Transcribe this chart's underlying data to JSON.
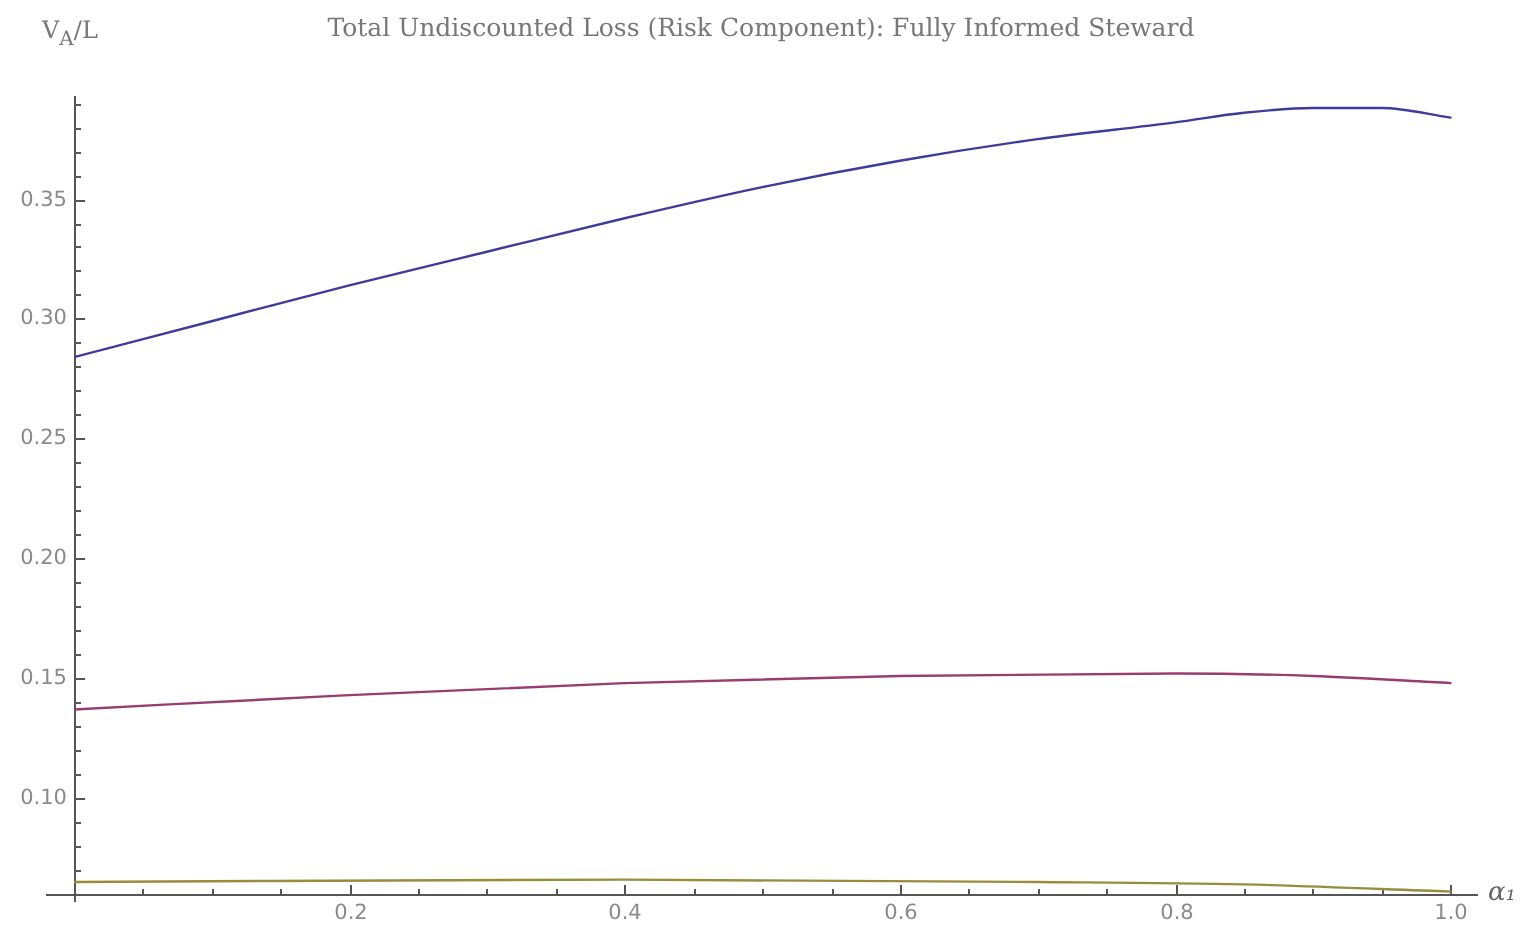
{
  "chart_data": {
    "type": "line",
    "title": "Total Undiscounted Loss (Risk Component): Fully Informed Steward",
    "xlabel": "α₁",
    "ylabel": "V$_{A}$/L",
    "series": [
      {
        "color": "#3d3d99",
        "x": [
          0,
          0.1,
          0.2,
          0.3,
          0.4,
          0.5,
          0.6,
          0.7,
          0.8,
          0.85,
          0.9,
          0.95,
          1.0
        ],
        "values": [
          0.284,
          0.299,
          0.314,
          0.328,
          0.342,
          0.355,
          0.366,
          0.375,
          0.382,
          0.386,
          0.388,
          0.388,
          0.384
        ]
      },
      {
        "color": "#993d71",
        "x": [
          0,
          0.2,
          0.4,
          0.6,
          0.8,
          0.9,
          1.0
        ],
        "values": [
          0.137,
          0.143,
          0.148,
          0.151,
          0.152,
          0.151,
          0.148
        ]
      },
      {
        "color": "#998c3d",
        "x": [
          0,
          0.4,
          0.7,
          0.85,
          1.0
        ],
        "values": [
          0.065,
          0.066,
          0.065,
          0.064,
          0.061
        ]
      }
    ],
    "xlim": [
      0,
      1.02
    ],
    "ylim": [
      0.06,
      0.393
    ],
    "xticks": [
      {
        "value": 0.05,
        "label": null
      },
      {
        "value": 0.1,
        "label": null
      },
      {
        "value": 0.15,
        "label": null
      },
      0.2,
      {
        "value": 0.25,
        "label": null
      },
      {
        "value": 0.3,
        "label": null
      },
      {
        "value": 0.35,
        "label": null
      },
      0.4,
      {
        "value": 0.45,
        "label": null
      },
      {
        "value": 0.5,
        "label": null
      },
      {
        "value": 0.55,
        "label": null
      },
      0.6,
      {
        "value": 0.65,
        "label": null
      },
      {
        "value": 0.7,
        "label": null
      },
      {
        "value": 0.75,
        "label": null
      },
      0.8,
      {
        "value": 0.85,
        "label": null
      },
      {
        "value": 0.9,
        "label": null
      },
      {
        "value": 0.95,
        "label": null
      },
      {
        "value": 1,
        "label": "1.0"
      }
    ],
    "yticks": [
      {
        "value": 0.07,
        "label": null
      },
      {
        "value": 0.08,
        "label": null
      },
      {
        "value": 0.09,
        "label": null
      },
      {
        "value": 0.1,
        "label": "0.10"
      },
      {
        "value": 0.11,
        "label": null
      },
      {
        "value": 0.12,
        "label": null
      },
      {
        "value": 0.13,
        "label": null
      },
      {
        "value": 0.14,
        "label": null
      },
      0.15,
      {
        "value": 0.16,
        "label": null
      },
      {
        "value": 0.17,
        "label": null
      },
      {
        "value": 0.18,
        "label": null
      },
      {
        "value": 0.19,
        "label": null
      },
      {
        "value": 0.2,
        "label": "0.20"
      },
      {
        "value": 0.21,
        "label": null
      },
      {
        "value": 0.22,
        "label": null
      },
      {
        "value": 0.23,
        "label": null
      },
      {
        "value": 0.24,
        "label": null
      },
      0.25,
      {
        "value": 0.26,
        "label": null
      },
      {
        "value": 0.27,
        "label": null
      },
      {
        "value": 0.28,
        "label": null
      },
      {
        "value": 0.29,
        "label": null
      },
      {
        "value": 0.3,
        "label": "0.30"
      },
      {
        "value": 0.31,
        "label": null
      },
      {
        "value": 0.32,
        "label": null
      },
      {
        "value": 0.33,
        "label": null
      },
      {
        "value": 0.34,
        "label": null
      },
      0.35,
      {
        "value": 0.36,
        "label": null
      },
      {
        "value": 0.37,
        "label": null
      },
      {
        "value": 0.38,
        "label": null
      },
      {
        "value": 0.39,
        "label": null
      }
    ],
    "grid": false,
    "legend": false,
    "marker": "none",
    "line_style": "solid"
  }
}
